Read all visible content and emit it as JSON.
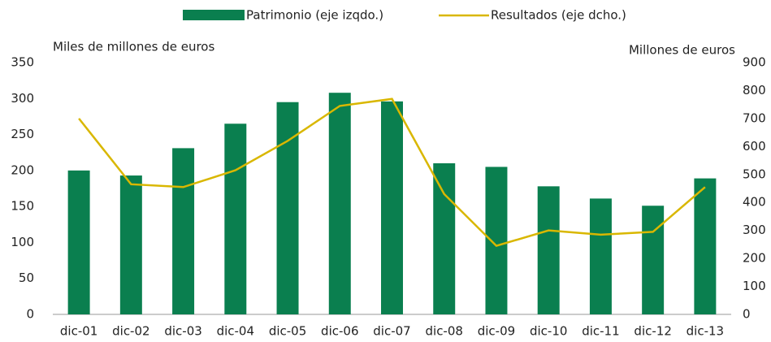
{
  "chart_data": {
    "type": "bar_line",
    "categories": [
      "dic-01",
      "dic-02",
      "dic-03",
      "dic-04",
      "dic-05",
      "dic-06",
      "dic-07",
      "dic-08",
      "dic-09",
      "dic-10",
      "dic-11",
      "dic-12",
      "dic-13"
    ],
    "y_label": "Miles de millones de euros",
    "y2_label": "Millones de euros",
    "series": [
      {
        "name": "Patrimonio (eje izqdo.)",
        "type": "bar",
        "color": "#0a7f4f",
        "values": [
          200,
          193,
          231,
          265,
          295,
          308,
          296,
          210,
          205,
          178,
          161,
          151,
          189
        ]
      },
      {
        "name": "Resultados (eje dcho.)",
        "type": "line",
        "axis": "y2",
        "color": "#d9b700",
        "values": [
          700,
          465,
          455,
          515,
          620,
          745,
          770,
          430,
          245,
          300,
          285,
          295,
          455
        ]
      }
    ],
    "ylim": [
      0,
      350
    ],
    "yticks": [
      0,
      50,
      100,
      150,
      200,
      250,
      300,
      350
    ],
    "y2lim": [
      0,
      900
    ],
    "y2ticks": [
      0,
      100,
      200,
      300,
      400,
      500,
      600,
      700,
      800,
      900
    ],
    "grid": false
  }
}
